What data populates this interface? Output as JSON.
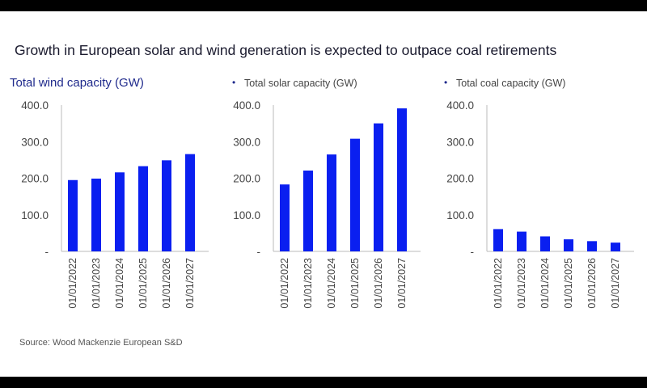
{
  "title": "Growth in European solar and wind generation is expected to outpace coal retirements",
  "source": "Source: Wood Mackenzie European S&D",
  "colors": {
    "bar": "#0a1ff0",
    "wind_title": "#1f2a8c",
    "text": "#444444"
  },
  "chart_data": [
    {
      "type": "bar",
      "title": "Total wind capacity (GW)",
      "categories": [
        "01/01/2022",
        "01/01/2023",
        "01/01/2024",
        "01/01/2025",
        "01/01/2026",
        "01/01/2027"
      ],
      "values": [
        195,
        199,
        216,
        233,
        249,
        266
      ],
      "ylim": [
        0,
        400
      ],
      "yticks": [
        "-",
        "100.0",
        "200.0",
        "300.0",
        "400.0"
      ],
      "grid": false
    },
    {
      "type": "bar",
      "title": "Total solar capacity (GW)",
      "bullet": "•",
      "categories": [
        "01/01/2022",
        "01/01/2023",
        "01/01/2024",
        "01/01/2025",
        "01/01/2026",
        "01/01/2027"
      ],
      "values": [
        183,
        221,
        265,
        308,
        350,
        391
      ],
      "ylim": [
        0,
        400
      ],
      "yticks": [
        "-",
        "100.0",
        "200.0",
        "300.0",
        "400.0"
      ],
      "grid": false
    },
    {
      "type": "bar",
      "title": "Total coal capacity (GW)",
      "bullet": "•",
      "categories": [
        "01/01/2022",
        "01/01/2023",
        "01/01/2024",
        "01/01/2025",
        "01/01/2026",
        "01/01/2027"
      ],
      "values": [
        61,
        54,
        41,
        33,
        28,
        24
      ],
      "ylim": [
        0,
        400
      ],
      "yticks": [
        "-",
        "100.0",
        "200.0",
        "300.0",
        "400.0"
      ],
      "grid": false
    }
  ]
}
